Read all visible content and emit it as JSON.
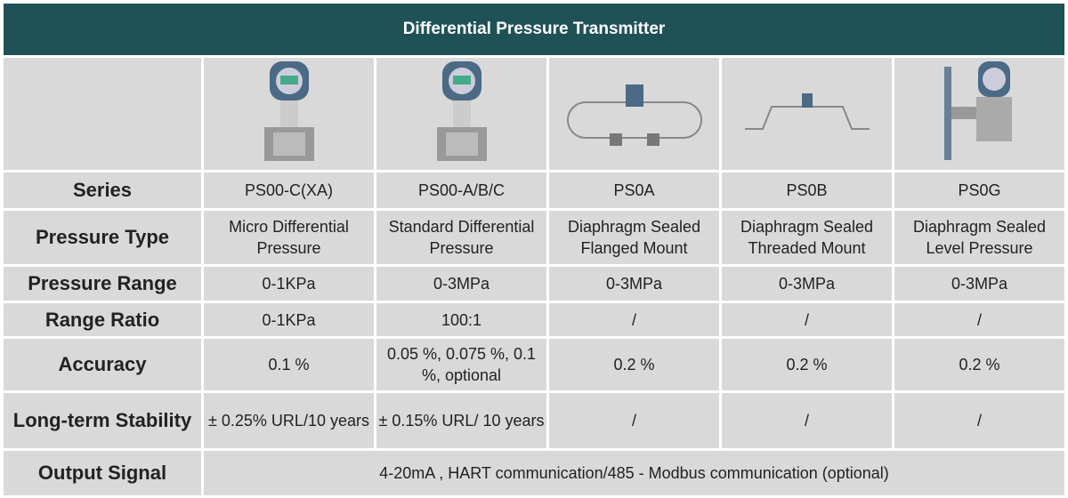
{
  "header": {
    "title": "Differential Pressure Transmitter"
  },
  "table": {
    "rows": [
      {
        "label": "Series",
        "cells": [
          "PS00-C(XA)",
          "PS00-A/B/C",
          "PS0A",
          "PS0B",
          "PS0G"
        ]
      },
      {
        "label": "Pressure Type",
        "cells": [
          "Micro Differential Pressure",
          "Standard Differential Pressure",
          "Diaphragm Sealed Flanged Mount",
          "Diaphragm Sealed Threaded Mount",
          "Diaphragm Sealed Level Pressure"
        ]
      },
      {
        "label": "Pressure Range",
        "cells": [
          "0-1KPa",
          "0-3MPa",
          "0-3MPa",
          "0-3MPa",
          "0-3MPa"
        ]
      },
      {
        "label": "Range Ratio",
        "cells": [
          "0-1KPa",
          "100:1",
          "/",
          "/",
          "/"
        ]
      },
      {
        "label": "Accuracy",
        "cells": [
          "0.1 %",
          "0.05 %, 0.075 %, 0.1 %, optional",
          "0.2 %",
          "0.2 %",
          "0.2 %"
        ]
      },
      {
        "label": "Long-term Stability",
        "cells": [
          "± 0.25% URL/10 years",
          "± 0.15% URL/ 10 years",
          "/",
          "/",
          "/"
        ]
      },
      {
        "label": "Output Signal",
        "cells": [
          "4-20mA , HART communication/485 - Modbus communication (optional)"
        ]
      }
    ]
  }
}
